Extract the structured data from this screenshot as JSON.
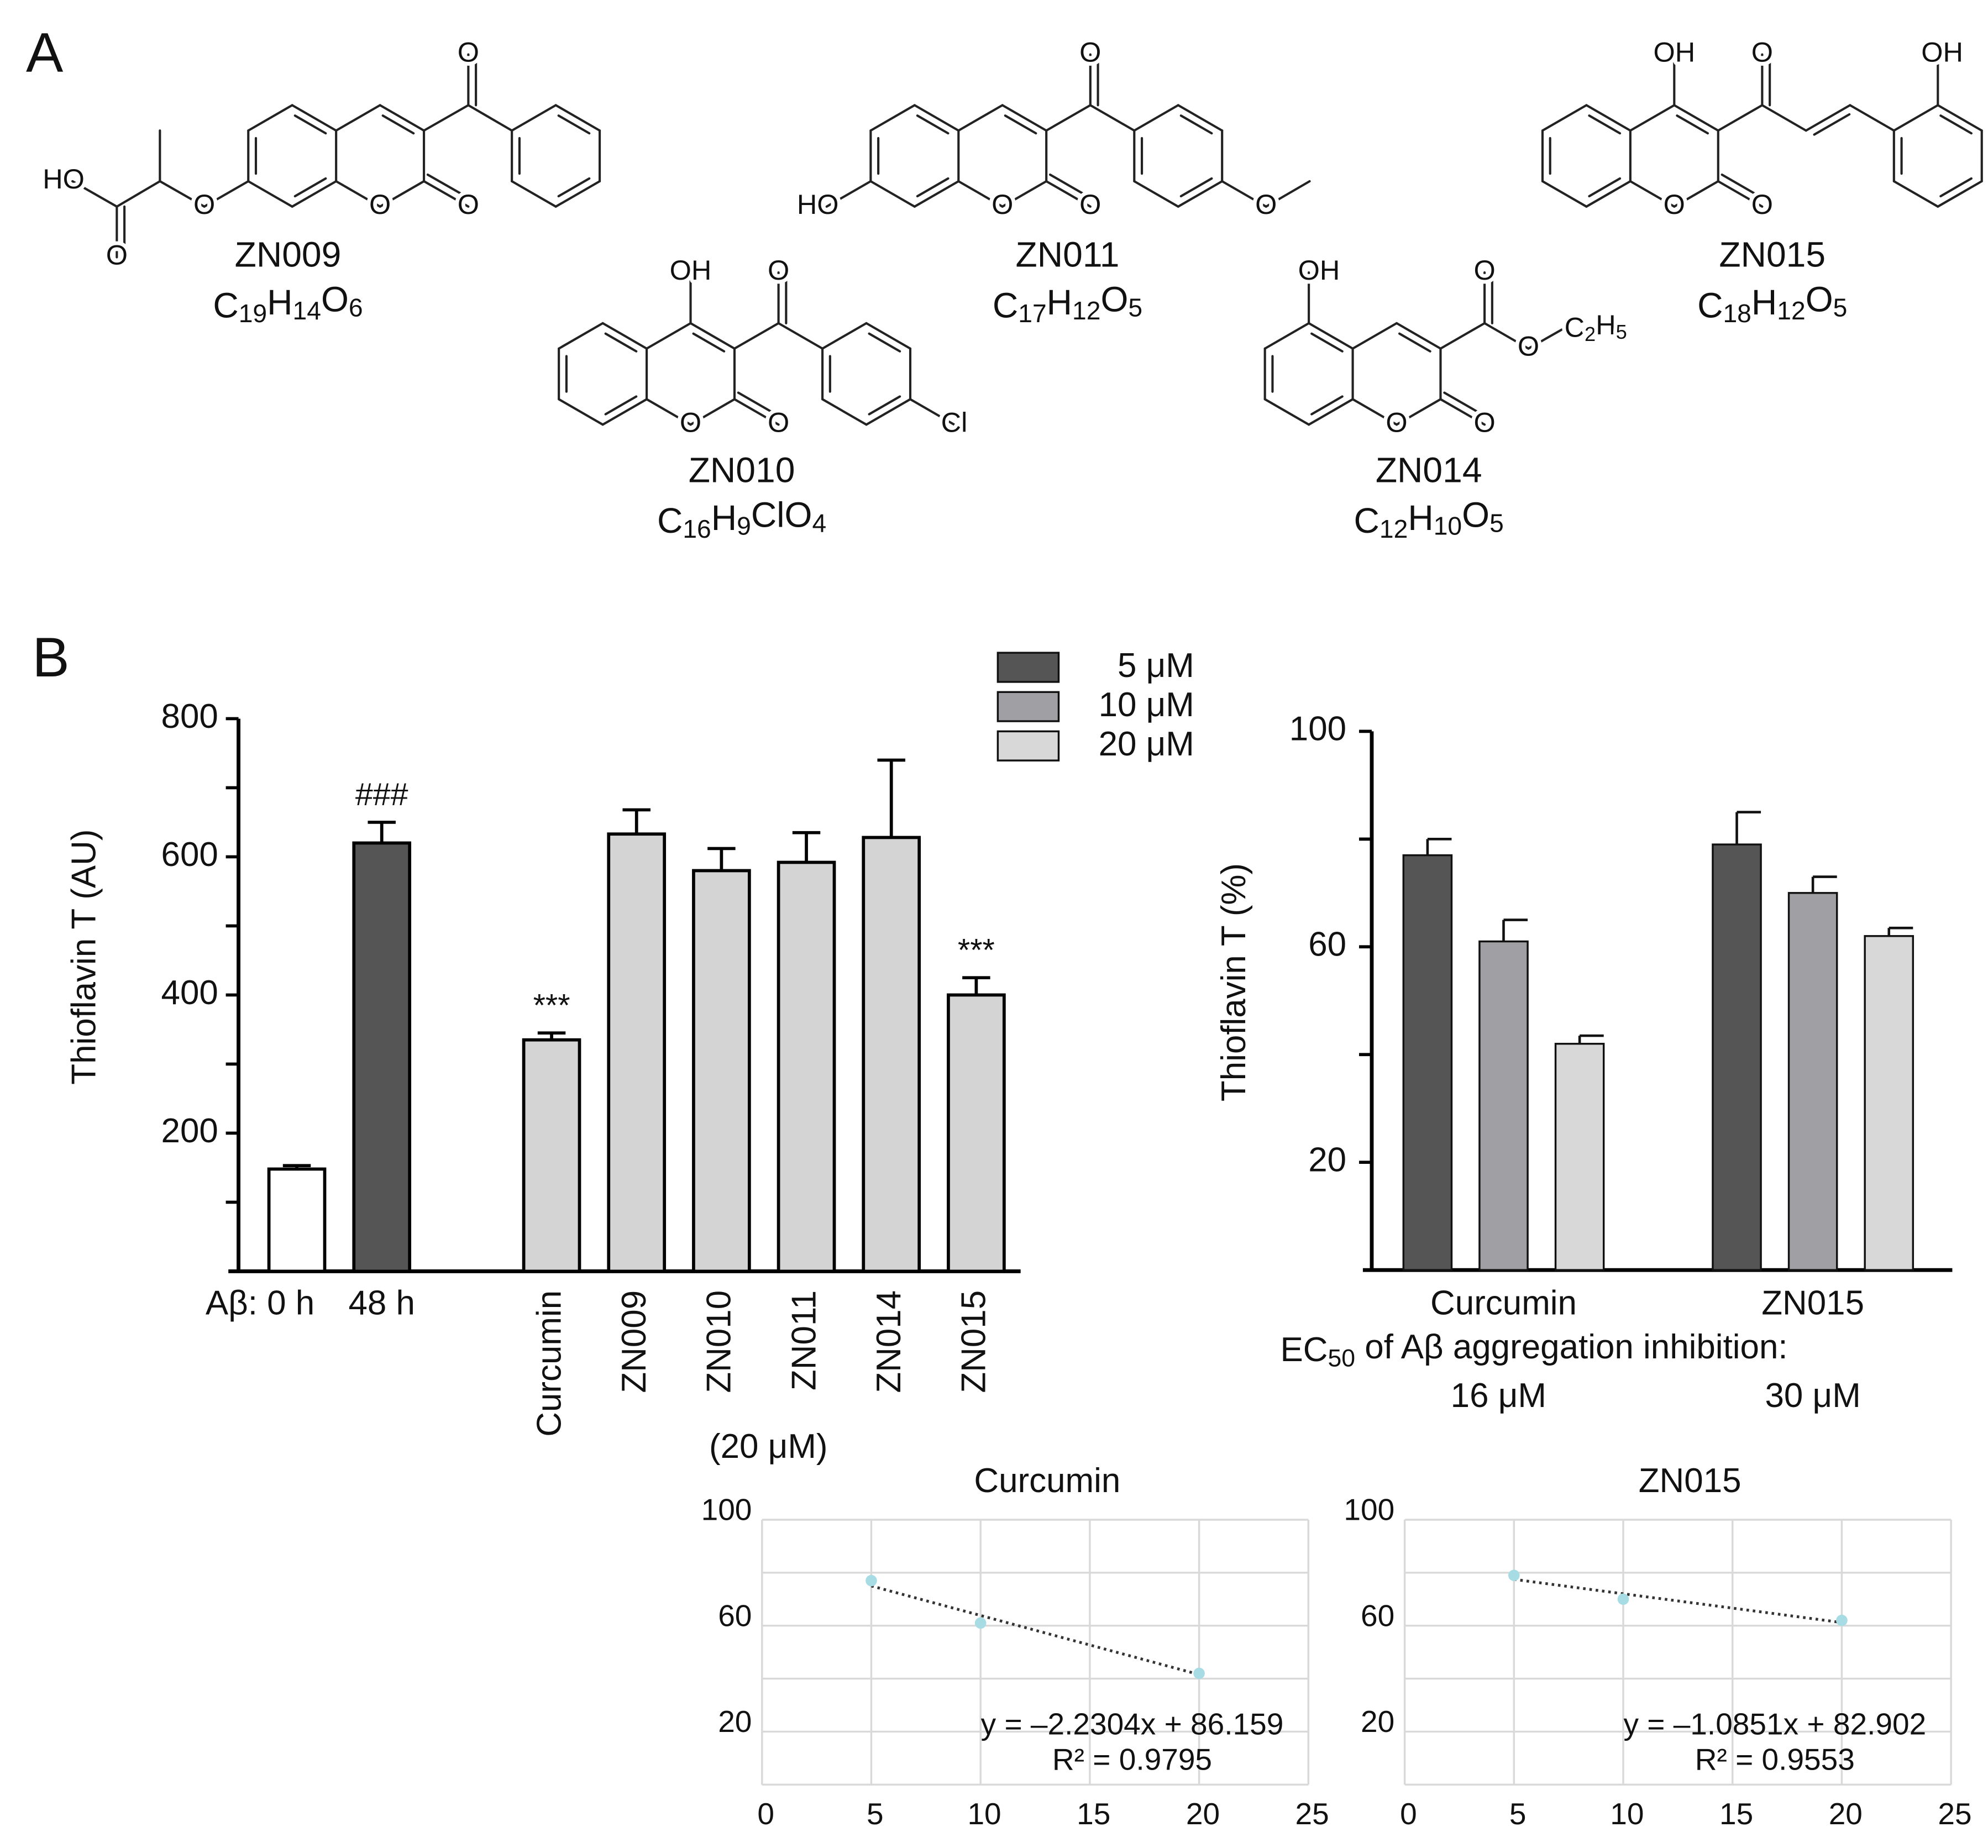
{
  "panel_labels": {
    "a": "A",
    "b": "B"
  },
  "compounds": [
    {
      "name": "ZN009",
      "formula": "C19H14O6",
      "atoms": [
        "HO",
        "O",
        "O",
        "O",
        "O",
        "O"
      ]
    },
    {
      "name": "ZN011",
      "formula": "C17H12O5",
      "atoms": [
        "HO",
        "O",
        "O",
        "O",
        "O"
      ]
    },
    {
      "name": "ZN015",
      "formula": "C18H12O5",
      "atoms": [
        "OH",
        "O",
        "O",
        "O",
        "OH"
      ]
    },
    {
      "name": "ZN010",
      "formula": "C16H9ClO4",
      "atoms": [
        "OH",
        "O",
        "O",
        "O",
        "Cl"
      ]
    },
    {
      "name": "ZN014",
      "formula": "C12H10O5",
      "atoms": [
        "OH",
        "O",
        "O",
        "O",
        "O",
        "C2H5"
      ]
    }
  ],
  "chart_data": [
    {
      "type": "bar",
      "ylabel": "Thioflavin T (AU)",
      "categories": [
        "Aβ: 0 h",
        "48 h",
        "Curcumin",
        "ZN009",
        "ZN010",
        "ZN011",
        "ZN014",
        "ZN015"
      ],
      "values": [
        148,
        620,
        335,
        633,
        580,
        592,
        628,
        400
      ],
      "errors": [
        5,
        30,
        10,
        35,
        32,
        43,
        112,
        25
      ],
      "colors": [
        "#ffffff",
        "#555555",
        "#d4d4d4",
        "#d4d4d4",
        "#d4d4d4",
        "#d4d4d4",
        "#d4d4d4",
        "#d4d4d4"
      ],
      "ylim": [
        0,
        800
      ],
      "yticks": [
        200,
        400,
        600,
        800
      ],
      "yminor_ticks": [
        100,
        300,
        500,
        700
      ],
      "annotations": [
        {
          "category": "48 h",
          "text": "###"
        },
        {
          "category": "Curcumin",
          "text": "***"
        },
        {
          "category": "ZN015",
          "text": "***"
        }
      ],
      "x_note": "(20 μM)"
    },
    {
      "type": "grouped_bar",
      "ylabel": "Thioflavin T (%)",
      "categories": [
        "Curcumin",
        "ZN015"
      ],
      "series": [
        {
          "name": "5 μM",
          "color": "#555555",
          "values": [
            77,
            79
          ],
          "errors": [
            3,
            6
          ]
        },
        {
          "name": "10 μM",
          "color": "#a0a0a4",
          "values": [
            61,
            70
          ],
          "errors": [
            4,
            3
          ]
        },
        {
          "name": "20 μM",
          "color": "#d8d8d8",
          "values": [
            42,
            62
          ],
          "errors": [
            1.5,
            1.5
          ]
        }
      ],
      "ylim": [
        0,
        100
      ],
      "yticks": [
        20,
        60,
        100
      ],
      "yminor_ticks": [
        40,
        80
      ],
      "note": "EC50 of Aβ aggregation inhibition:",
      "ec50_labels": [
        "16 μM",
        "30 μM"
      ]
    },
    {
      "type": "scatter",
      "title": "Curcumin",
      "x": [
        5,
        10,
        20
      ],
      "y": [
        77,
        61,
        42
      ],
      "color": "#a8dce4",
      "xlim": [
        0,
        25
      ],
      "xticks": [
        0,
        5,
        10,
        15,
        20,
        25
      ],
      "ylim": [
        0,
        100
      ],
      "yticks": [
        20,
        60,
        100
      ],
      "ygrid": [
        0,
        20,
        40,
        60,
        80,
        100
      ],
      "grid": true,
      "trendline": {
        "slope": -2.2304,
        "intercept": 86.159,
        "equation": "y = –2.2304x + 86.159",
        "r2_label": "R² = 0.9795"
      }
    },
    {
      "type": "scatter",
      "title": "ZN015",
      "x": [
        5,
        10,
        20
      ],
      "y": [
        79,
        70,
        62
      ],
      "color": "#a8dce4",
      "xlim": [
        0,
        25
      ],
      "xticks": [
        0,
        5,
        10,
        15,
        20,
        25
      ],
      "ylim": [
        0,
        100
      ],
      "yticks": [
        20,
        60,
        100
      ],
      "ygrid": [
        0,
        20,
        40,
        60,
        80,
        100
      ],
      "grid": true,
      "trendline": {
        "slope": -1.0851,
        "intercept": 82.902,
        "equation": "y = –1.0851x + 82.902",
        "r2_label": "R² = 0.9553"
      }
    }
  ]
}
